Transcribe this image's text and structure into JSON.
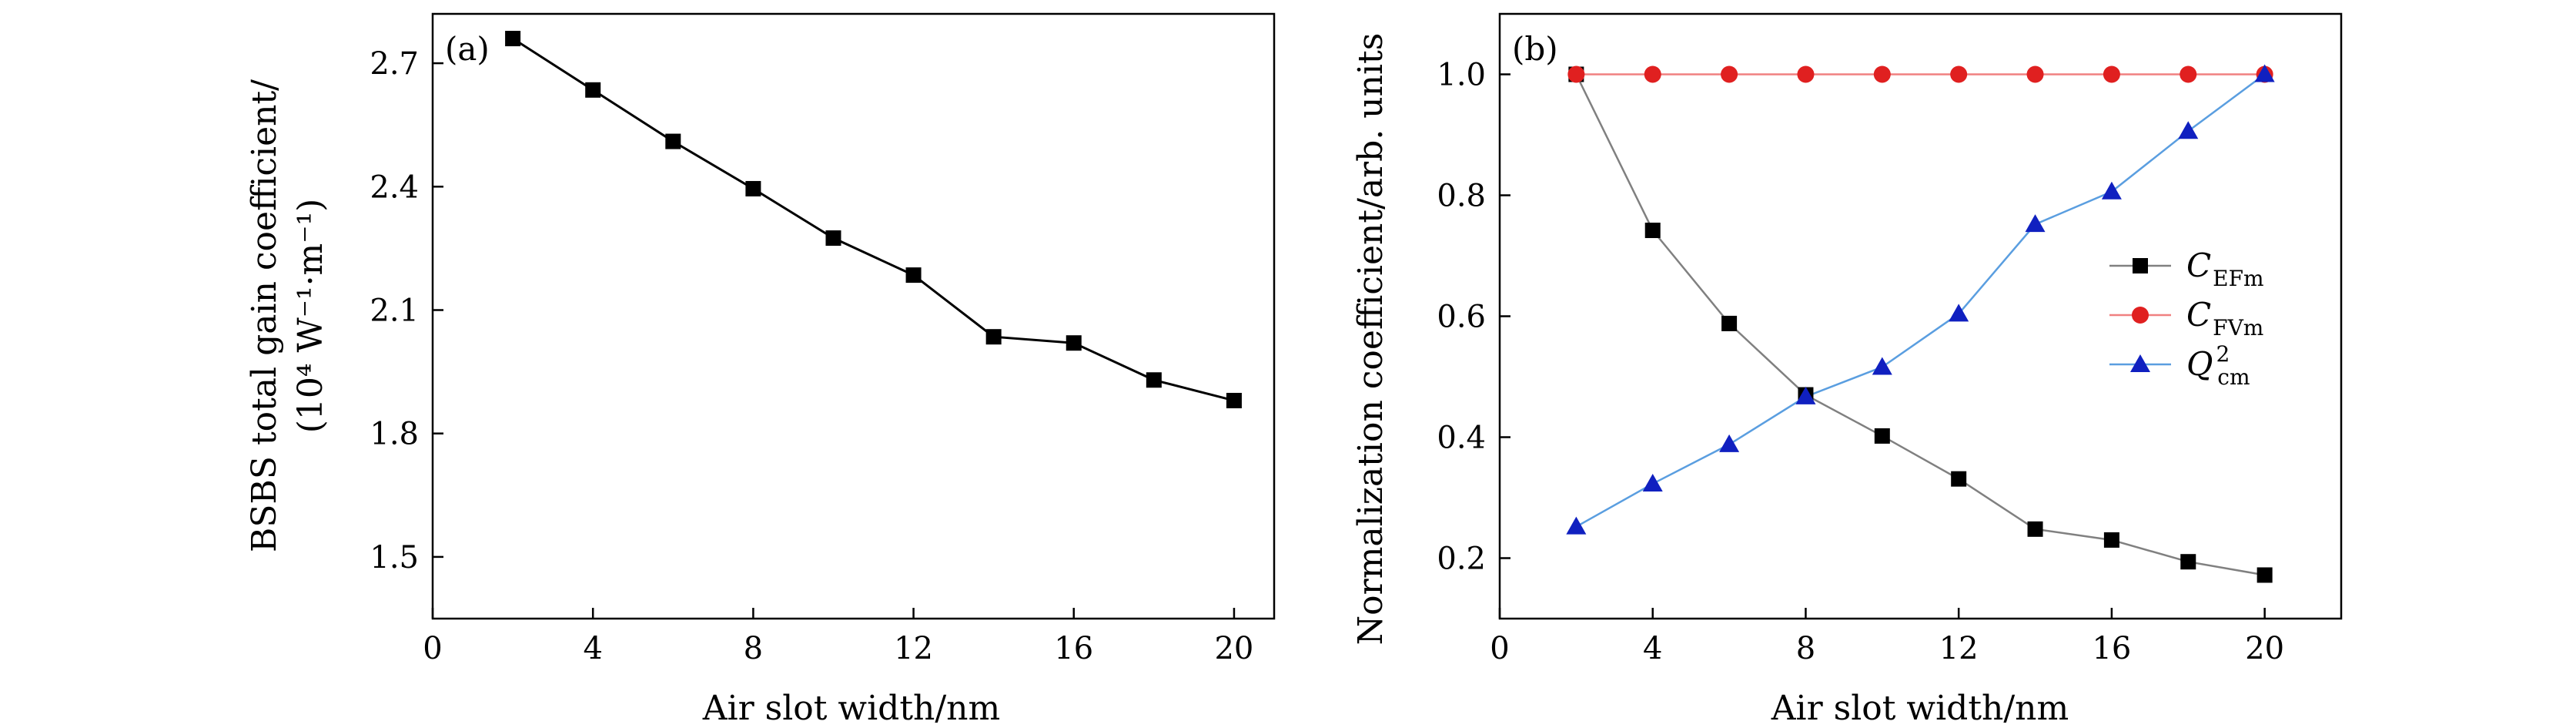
{
  "chart_data": [
    {
      "type": "line",
      "panel_label": "(a)",
      "xlabel": "Air slot width/nm",
      "ylabel": "BSBS total gain coefficient/",
      "ylabel_units": "(10⁴ W⁻¹·m⁻¹)",
      "xlim": [
        0,
        21
      ],
      "ylim": [
        1.35,
        2.82
      ],
      "xticks": [
        0,
        4,
        8,
        12,
        16,
        20
      ],
      "xtick_labels": [
        "0",
        "4",
        "8",
        "12",
        "16",
        "20"
      ],
      "yticks": [
        1.5,
        1.8,
        2.1,
        2.4,
        2.7
      ],
      "ytick_labels": [
        "1.5",
        "1.8",
        "2.1",
        "2.4",
        "2.7"
      ],
      "series": [
        {
          "name": "BSBS total gain",
          "color": "#000000",
          "marker": "square",
          "x": [
            2,
            4,
            6,
            8,
            10,
            12,
            14,
            16,
            18,
            20
          ],
          "y": [
            2.76,
            2.635,
            2.51,
            2.395,
            2.275,
            2.185,
            2.035,
            2.02,
            1.93,
            1.88
          ]
        }
      ]
    },
    {
      "type": "line",
      "panel_label": "(b)",
      "xlabel": "Air slot width/nm",
      "ylabel": "Normalization coefficient/arb. units",
      "xlim": [
        0,
        22
      ],
      "ylim": [
        0.1,
        1.1
      ],
      "xticks": [
        0,
        4,
        8,
        12,
        16,
        20
      ],
      "xtick_labels": [
        "0",
        "4",
        "8",
        "12",
        "16",
        "20"
      ],
      "yticks": [
        0.2,
        0.4,
        0.6,
        0.8,
        1.0
      ],
      "ytick_labels": [
        "0.2",
        "0.4",
        "0.6",
        "0.8",
        "1.0"
      ],
      "legend_position": "right",
      "series": [
        {
          "name": "C_EFm",
          "label_main": "C",
          "label_sub": "EFm",
          "label_sup": "",
          "color": "#000000",
          "line_color": "#808080",
          "marker": "square",
          "x": [
            2,
            4,
            6,
            8,
            10,
            12,
            14,
            16,
            18,
            20
          ],
          "y": [
            1.0,
            0.742,
            0.588,
            0.47,
            0.402,
            0.331,
            0.248,
            0.23,
            0.194,
            0.172
          ]
        },
        {
          "name": "C_FVm",
          "label_main": "C",
          "label_sub": "FVm",
          "label_sup": "",
          "color": "#e02020",
          "line_color": "#f08080",
          "marker": "circle",
          "x": [
            2,
            4,
            6,
            8,
            10,
            12,
            14,
            16,
            18,
            20
          ],
          "y": [
            1.0,
            1.0,
            1.0,
            1.0,
            1.0,
            1.0,
            1.0,
            1.0,
            1.0,
            1.0
          ]
        },
        {
          "name": "Q^2_cm",
          "label_main": "Q",
          "label_sub": "cm",
          "label_sup": "2",
          "color": "#1020c0",
          "line_color": "#5a9ee0",
          "marker": "triangle",
          "x": [
            2,
            4,
            6,
            8,
            10,
            12,
            14,
            16,
            18,
            20
          ],
          "y": [
            0.252,
            0.323,
            0.388,
            0.467,
            0.516,
            0.604,
            0.752,
            0.806,
            0.906,
            1.0
          ]
        }
      ]
    }
  ]
}
